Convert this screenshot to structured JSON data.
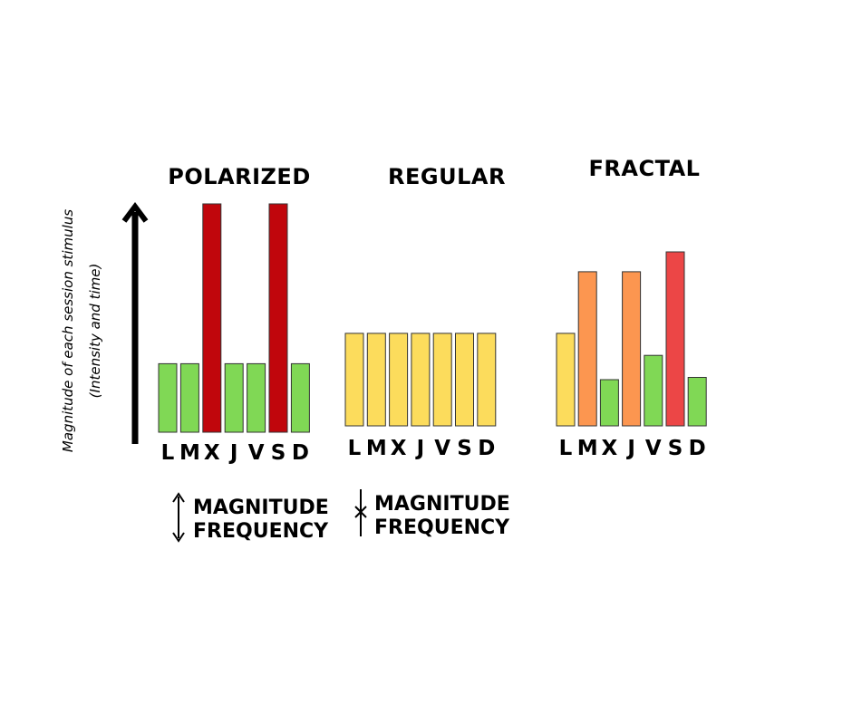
{
  "y_axis_label_line1": "Magnitude of each session stimulus",
  "y_axis_label_line2": "(Intensity and time)",
  "chart_data": [
    {
      "type": "bar",
      "title": "POLARIZED",
      "categories": [
        "L",
        "M",
        "X",
        "J",
        "V",
        "S",
        "D"
      ],
      "values": [
        3,
        3,
        10,
        3,
        3,
        10,
        3
      ],
      "colors": [
        "#80d855",
        "#80d855",
        "#c0060c",
        "#80d855",
        "#80d855",
        "#c0060c",
        "#80d855"
      ],
      "legend": {
        "magnitude": "MAGNITUDE",
        "frequency": "FREQUENCY",
        "symbol": "double-arrow-icon"
      }
    },
    {
      "type": "bar",
      "title": "REGULAR",
      "categories": [
        "L",
        "M",
        "X",
        "J",
        "V",
        "S",
        "D"
      ],
      "values": [
        4.2,
        4.2,
        4.2,
        4.2,
        4.2,
        4.2,
        4.2
      ],
      "colors": [
        "#fcdc5c",
        "#fcdc5c",
        "#fcdc5c",
        "#fcdc5c",
        "#fcdc5c",
        "#fcdc5c",
        "#fcdc5c"
      ],
      "legend": {
        "magnitude": "MAGNITUDE",
        "frequency": "FREQUENCY",
        "symbol": "cross-line-icon"
      }
    },
    {
      "type": "bar",
      "title": "FRACTAL",
      "categories": [
        "L",
        "M",
        "X",
        "J",
        "V",
        "S",
        "D"
      ],
      "values": [
        4.2,
        7,
        2.1,
        7,
        3.2,
        7.9,
        2.2
      ],
      "colors": [
        "#fcdc5c",
        "#fc9650",
        "#80d855",
        "#fc9650",
        "#80d855",
        "#ec4646",
        "#80d855"
      ]
    }
  ]
}
